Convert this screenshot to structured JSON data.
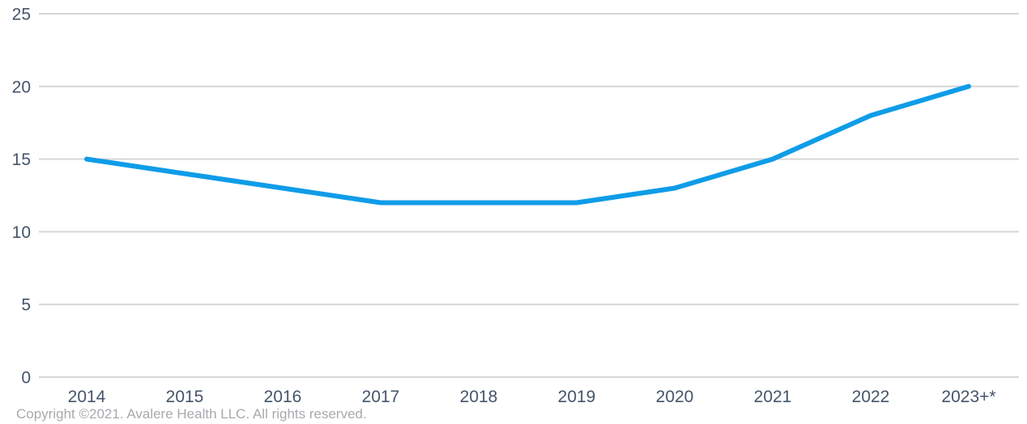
{
  "chart_data": {
    "type": "line",
    "categories": [
      "2014",
      "2015",
      "2016",
      "2017",
      "2018",
      "2019",
      "2020",
      "2021",
      "2022",
      "2023+*"
    ],
    "series": [
      {
        "name": "",
        "values": [
          15,
          14,
          13,
          12,
          12,
          12,
          13,
          15,
          18,
          20
        ]
      }
    ],
    "title": "",
    "xlabel": "",
    "ylabel": "",
    "ylim": [
      0,
      25
    ],
    "yticks": [
      0,
      5,
      10,
      15,
      20,
      25
    ],
    "grid": true,
    "legend": "none",
    "line_color": "#0f9ce8",
    "gridline_color": "#d6d6d6",
    "tick_label_color": "#44546a"
  },
  "footer": {
    "copyright": "Copyright ©2021. Avalere Health LLC. All rights reserved.",
    "color": "#a9a9af"
  }
}
